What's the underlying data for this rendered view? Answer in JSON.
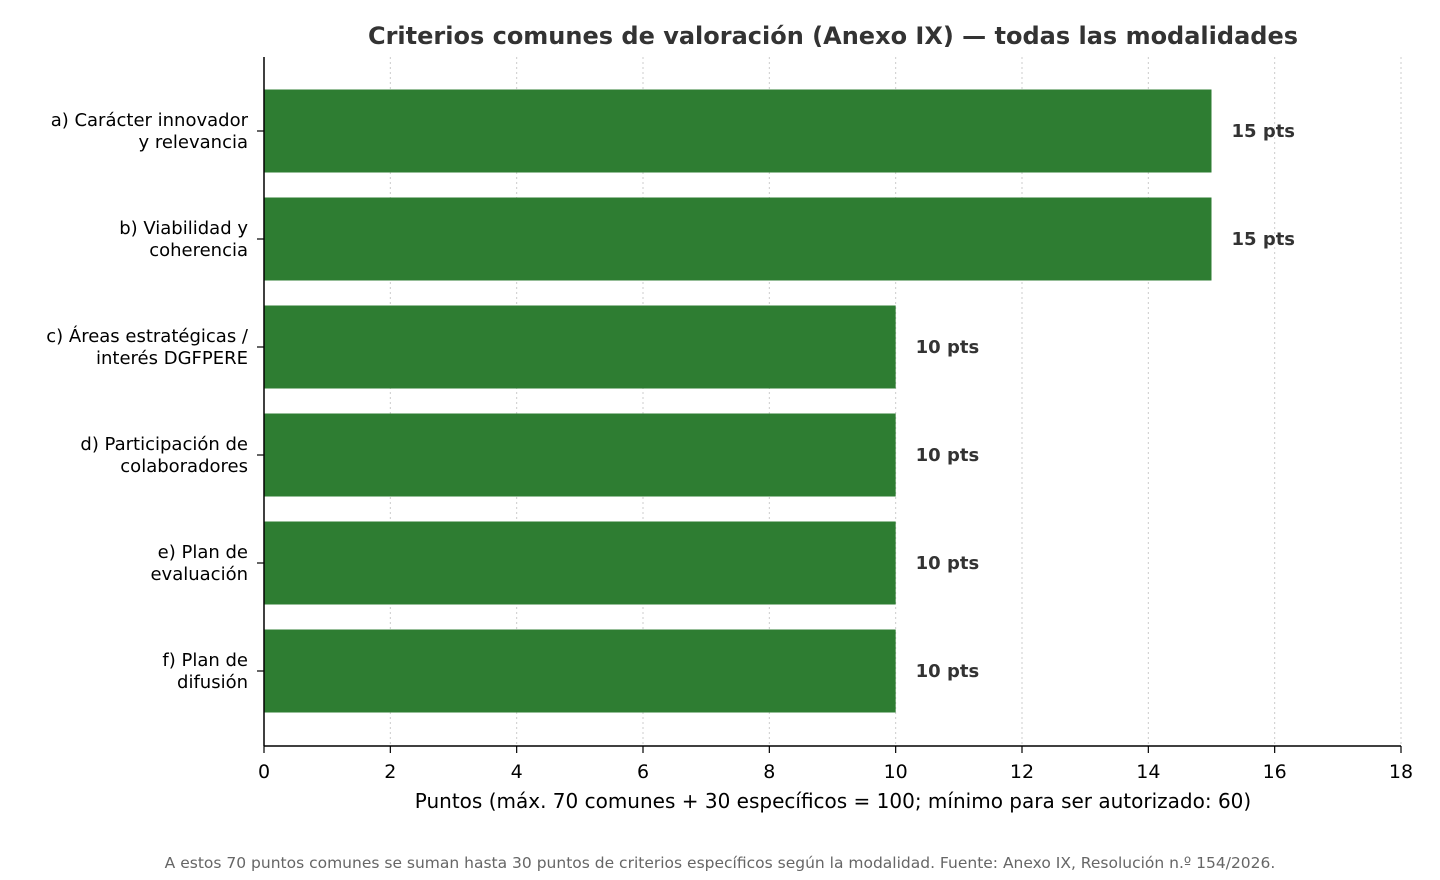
{
  "chart_data": {
    "type": "bar",
    "orientation": "horizontal",
    "title": "Criterios comunes de valoración (Anexo IX) — todas las modalidades",
    "xlabel": "Puntos (máx. 70 comunes + 30 específicos = 100; mínimo para ser autorizado: 60)",
    "ylabel": "",
    "categories": [
      [
        "a) Carácter innovador",
        "y relevancia"
      ],
      [
        "b) Viabilidad y",
        "coherencia"
      ],
      [
        "c) Áreas estratégicas /",
        "interés DGFPERE"
      ],
      [
        "d) Participación de",
        "colaboradores"
      ],
      [
        "e) Plan de",
        "evaluación"
      ],
      [
        "f) Plan de",
        "difusión"
      ]
    ],
    "values": [
      15,
      15,
      10,
      10,
      10,
      10
    ],
    "data_labels": [
      "15 pts",
      "15 pts",
      "10 pts",
      "10 pts",
      "10 pts",
      "10 pts"
    ],
    "xlim": [
      0,
      18
    ],
    "xticks": [
      0,
      2,
      4,
      6,
      8,
      10,
      12,
      14,
      16,
      18
    ],
    "grid": "vertical dotted",
    "legend": "none",
    "bar_color": "#2e7d32",
    "grid_color": "#cccccc",
    "axis_color": "#000000"
  },
  "footnote": "A estos 70 puntos comunes se suman hasta 30 puntos de criterios específicos según la modalidad. Fuente: Anexo IX, Resolución n.º 154/2026."
}
